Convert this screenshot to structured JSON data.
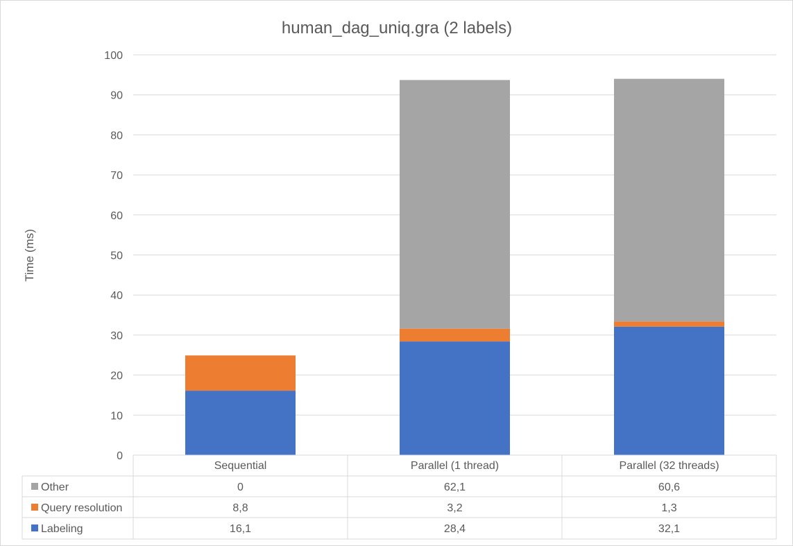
{
  "chart_data": {
    "type": "bar",
    "stacked": true,
    "title": "human_dag_uniq.gra  (2 labels)",
    "ylabel": "Time (ms)",
    "xlabel": "",
    "ylim": [
      0,
      100
    ],
    "yticks": [
      0,
      10,
      20,
      30,
      40,
      50,
      60,
      70,
      80,
      90,
      100
    ],
    "grid": true,
    "legend": "data-table",
    "categories": [
      "Sequential",
      "Parallel (1 thread)",
      "Parallel (32 threads)"
    ],
    "series": [
      {
        "name": "Labeling",
        "color": "#4472c4",
        "values": [
          16.1,
          28.4,
          32.1
        ],
        "labels": [
          "16,1",
          "28,4",
          "32,1"
        ]
      },
      {
        "name": "Query resolution",
        "color": "#ed7d31",
        "values": [
          8.8,
          3.2,
          1.3
        ],
        "labels": [
          "8,8",
          "3,2",
          "1,3"
        ]
      },
      {
        "name": "Other",
        "color": "#a5a5a5",
        "values": [
          0,
          62.1,
          60.6
        ],
        "labels": [
          "0",
          "62,1",
          "60,6"
        ]
      }
    ]
  }
}
